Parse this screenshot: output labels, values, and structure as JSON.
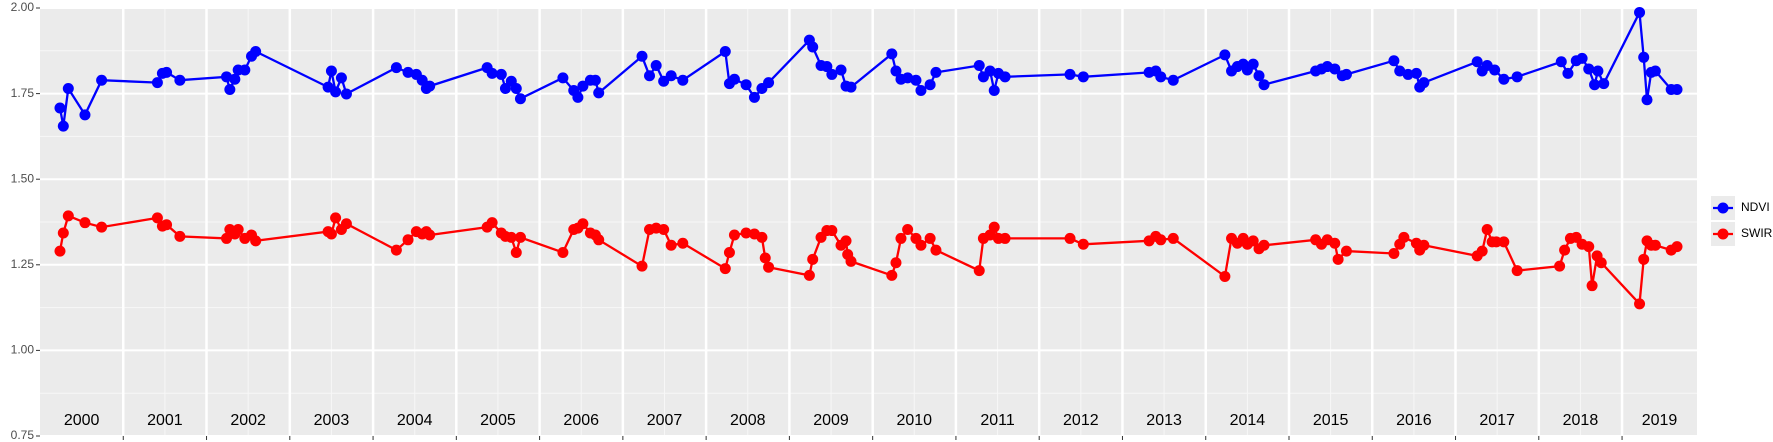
{
  "chart_data": {
    "type": "line",
    "xlim": [
      2000,
      2019.9
    ],
    "ylim": [
      0.75,
      2.0
    ],
    "yticks": [
      {
        "value": 0.75,
        "label": "0.75"
      },
      {
        "value": 1.0,
        "label": "1.00"
      },
      {
        "value": 1.25,
        "label": "1.25"
      },
      {
        "value": 1.5,
        "label": "1.50"
      },
      {
        "value": 1.75,
        "label": "1.75"
      },
      {
        "value": 2.0,
        "label": "2.00"
      }
    ],
    "xticks": [
      2001,
      2002,
      2003,
      2004,
      2005,
      2006,
      2007,
      2008,
      2009,
      2010,
      2011,
      2012,
      2013,
      2014,
      2015,
      2016,
      2017,
      2018,
      2019
    ],
    "grid": true,
    "legend": "right",
    "year_labels": [
      {
        "value": 2000.5,
        "label": "2000"
      },
      {
        "value": 2001.5,
        "label": "2001"
      },
      {
        "value": 2002.5,
        "label": "2002"
      },
      {
        "value": 2003.5,
        "label": "2003"
      },
      {
        "value": 2004.5,
        "label": "2004"
      },
      {
        "value": 2005.5,
        "label": "2005"
      },
      {
        "value": 2006.5,
        "label": "2006"
      },
      {
        "value": 2007.5,
        "label": "2007"
      },
      {
        "value": 2008.5,
        "label": "2008"
      },
      {
        "value": 2009.5,
        "label": "2009"
      },
      {
        "value": 2010.5,
        "label": "2010"
      },
      {
        "value": 2011.5,
        "label": "2011"
      },
      {
        "value": 2012.5,
        "label": "2012"
      },
      {
        "value": 2013.5,
        "label": "2013"
      },
      {
        "value": 2014.5,
        "label": "2014"
      },
      {
        "value": 2015.5,
        "label": "2015"
      },
      {
        "value": 2016.5,
        "label": "2016"
      },
      {
        "value": 2017.5,
        "label": "2017"
      },
      {
        "value": 2018.5,
        "label": "2018"
      },
      {
        "value": 2019.45,
        "label": "2019"
      }
    ],
    "series": [
      {
        "name": "NDVI",
        "color": "#0000ff",
        "x": [
          2000.24,
          2000.28,
          2000.34,
          2000.54,
          2000.74,
          2001.41,
          2001.47,
          2001.52,
          2001.68,
          2002.24,
          2002.28,
          2002.34,
          2002.38,
          2002.46,
          2002.54,
          2002.59,
          2003.46,
          2003.5,
          2003.55,
          2003.62,
          2003.68,
          2004.28,
          2004.42,
          2004.52,
          2004.59,
          2004.64,
          2004.68,
          2005.37,
          2005.43,
          2005.54,
          2005.59,
          2005.66,
          2005.72,
          2005.77,
          2006.28,
          2006.41,
          2006.46,
          2006.52,
          2006.61,
          2006.67,
          2006.71,
          2007.23,
          2007.32,
          2007.4,
          2007.49,
          2007.58,
          2007.72,
          2008.23,
          2008.28,
          2008.34,
          2008.48,
          2008.58,
          2008.67,
          2008.75,
          2009.24,
          2009.28,
          2009.38,
          2009.45,
          2009.51,
          2009.62,
          2009.68,
          2009.74,
          2010.23,
          2010.28,
          2010.34,
          2010.42,
          2010.52,
          2010.58,
          2010.69,
          2010.76,
          2011.28,
          2011.33,
          2011.41,
          2011.46,
          2011.51,
          2011.59,
          2012.37,
          2012.53,
          2013.32,
          2013.4,
          2013.46,
          2013.61,
          2014.23,
          2014.31,
          2014.38,
          2014.45,
          2014.5,
          2014.57,
          2014.64,
          2014.7,
          2015.32,
          2015.39,
          2015.46,
          2015.55,
          2015.64,
          2015.69,
          2016.26,
          2016.33,
          2016.43,
          2016.53,
          2016.57,
          2016.62,
          2017.26,
          2017.32,
          2017.38,
          2017.47,
          2017.58,
          2017.74,
          2018.27,
          2018.35,
          2018.45,
          2018.52,
          2018.6,
          2018.67,
          2018.71,
          2018.78,
          2019.21,
          2019.26,
          2019.3,
          2019.35,
          2019.4,
          2019.59,
          2019.66
        ],
        "values": [
          1.708,
          1.655,
          1.765,
          1.688,
          1.789,
          1.782,
          1.809,
          1.812,
          1.789,
          1.799,
          1.762,
          1.792,
          1.819,
          1.819,
          1.859,
          1.873,
          1.769,
          1.816,
          1.755,
          1.796,
          1.749,
          1.826,
          1.812,
          1.806,
          1.789,
          1.765,
          1.772,
          1.826,
          1.809,
          1.806,
          1.765,
          1.786,
          1.765,
          1.735,
          1.796,
          1.759,
          1.739,
          1.772,
          1.789,
          1.789,
          1.752,
          1.859,
          1.802,
          1.832,
          1.786,
          1.802,
          1.789,
          1.873,
          1.779,
          1.792,
          1.776,
          1.739,
          1.765,
          1.782,
          1.906,
          1.886,
          1.832,
          1.829,
          1.806,
          1.819,
          1.772,
          1.769,
          1.866,
          1.816,
          1.792,
          1.796,
          1.789,
          1.759,
          1.776,
          1.812,
          1.832,
          1.799,
          1.816,
          1.759,
          1.809,
          1.799,
          1.806,
          1.799,
          1.812,
          1.816,
          1.799,
          1.789,
          1.863,
          1.816,
          1.829,
          1.836,
          1.819,
          1.836,
          1.802,
          1.776,
          1.816,
          1.822,
          1.829,
          1.822,
          1.802,
          1.806,
          1.846,
          1.816,
          1.806,
          1.809,
          1.769,
          1.782,
          1.843,
          1.816,
          1.832,
          1.819,
          1.792,
          1.799,
          1.843,
          1.809,
          1.846,
          1.853,
          1.822,
          1.776,
          1.816,
          1.779,
          1.987,
          1.856,
          1.732,
          1.812,
          1.816,
          1.762,
          1.762
        ]
      },
      {
        "name": "SWIR",
        "color": "#ff0000",
        "x": [
          2000.24,
          2000.28,
          2000.34,
          2000.54,
          2000.74,
          2001.41,
          2001.47,
          2001.52,
          2001.68,
          2002.24,
          2002.28,
          2002.34,
          2002.38,
          2002.46,
          2002.54,
          2002.59,
          2003.46,
          2003.5,
          2003.55,
          2003.62,
          2003.68,
          2004.28,
          2004.42,
          2004.52,
          2004.59,
          2004.64,
          2004.68,
          2005.37,
          2005.43,
          2005.54,
          2005.59,
          2005.66,
          2005.72,
          2005.77,
          2006.28,
          2006.41,
          2006.46,
          2006.52,
          2006.61,
          2006.67,
          2006.71,
          2007.23,
          2007.32,
          2007.4,
          2007.49,
          2007.58,
          2007.72,
          2008.23,
          2008.28,
          2008.34,
          2008.48,
          2008.58,
          2008.67,
          2008.71,
          2008.75,
          2009.24,
          2009.28,
          2009.38,
          2009.45,
          2009.51,
          2009.62,
          2009.68,
          2009.7,
          2009.74,
          2010.23,
          2010.28,
          2010.34,
          2010.42,
          2010.52,
          2010.58,
          2010.69,
          2010.76,
          2011.28,
          2011.33,
          2011.41,
          2011.46,
          2011.51,
          2011.59,
          2012.37,
          2012.53,
          2013.32,
          2013.4,
          2013.46,
          2013.61,
          2014.23,
          2014.31,
          2014.38,
          2014.45,
          2014.5,
          2014.57,
          2014.64,
          2014.7,
          2015.32,
          2015.39,
          2015.46,
          2015.55,
          2015.59,
          2015.69,
          2016.26,
          2016.33,
          2016.38,
          2016.53,
          2016.57,
          2016.62,
          2017.26,
          2017.32,
          2017.38,
          2017.44,
          2017.49,
          2017.58,
          2017.74,
          2018.25,
          2018.31,
          2018.38,
          2018.45,
          2018.52,
          2018.6,
          2018.64,
          2018.7,
          2018.75,
          2019.21,
          2019.26,
          2019.3,
          2019.35,
          2019.4,
          2019.59,
          2019.66
        ],
        "values": [
          1.29,
          1.343,
          1.393,
          1.373,
          1.36,
          1.387,
          1.363,
          1.367,
          1.333,
          1.327,
          1.353,
          1.34,
          1.353,
          1.327,
          1.337,
          1.32,
          1.347,
          1.34,
          1.387,
          1.353,
          1.37,
          1.293,
          1.323,
          1.347,
          1.34,
          1.347,
          1.337,
          1.36,
          1.373,
          1.343,
          1.333,
          1.33,
          1.286,
          1.33,
          1.286,
          1.353,
          1.357,
          1.37,
          1.343,
          1.337,
          1.323,
          1.246,
          1.353,
          1.357,
          1.353,
          1.307,
          1.313,
          1.239,
          1.286,
          1.337,
          1.343,
          1.34,
          1.33,
          1.27,
          1.243,
          1.219,
          1.266,
          1.33,
          1.35,
          1.35,
          1.307,
          1.32,
          1.28,
          1.26,
          1.219,
          1.256,
          1.327,
          1.353,
          1.327,
          1.307,
          1.327,
          1.293,
          1.233,
          1.327,
          1.337,
          1.36,
          1.327,
          1.327,
          1.327,
          1.31,
          1.32,
          1.333,
          1.323,
          1.327,
          1.216,
          1.327,
          1.313,
          1.327,
          1.31,
          1.32,
          1.297,
          1.307,
          1.323,
          1.31,
          1.323,
          1.313,
          1.266,
          1.29,
          1.283,
          1.31,
          1.33,
          1.313,
          1.293,
          1.307,
          1.276,
          1.29,
          1.353,
          1.317,
          1.317,
          1.317,
          1.233,
          1.246,
          1.293,
          1.327,
          1.33,
          1.31,
          1.303,
          1.189,
          1.276,
          1.256,
          1.136,
          1.266,
          1.32,
          1.307,
          1.307,
          1.293,
          1.303
        ]
      }
    ]
  }
}
